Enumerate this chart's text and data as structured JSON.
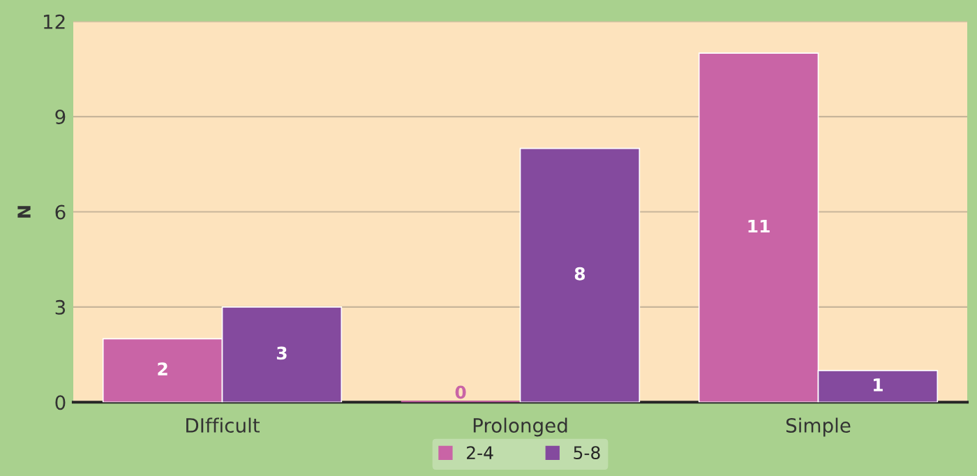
{
  "chart_data": {
    "type": "bar",
    "ylabel": "N",
    "categories": [
      "DIfficult",
      "Prolonged",
      "Simple"
    ],
    "series": [
      {
        "name": "2-4",
        "color": "#c964a6",
        "values": [
          2,
          0,
          11
        ]
      },
      {
        "name": "5-8",
        "color": "#844a9e",
        "values": [
          3,
          8,
          1
        ]
      }
    ],
    "ylim": [
      0,
      12
    ],
    "yticks": [
      0,
      3,
      6,
      9,
      12
    ],
    "grid": "y",
    "legend": "bottom",
    "data_labels": true
  }
}
